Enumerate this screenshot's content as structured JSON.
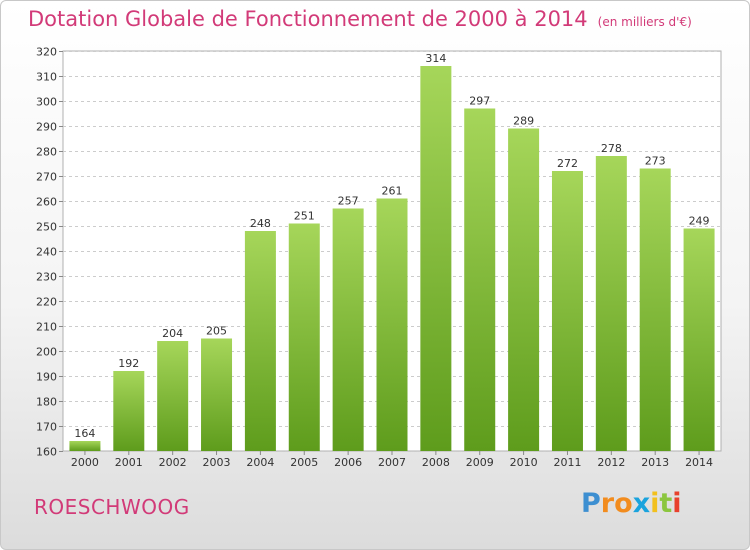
{
  "page": {
    "title": "Dotation Globale de Fonctionnement de 2000 à 2014",
    "unit": "(en milliers d'€)",
    "commune": "ROESCHWOOG",
    "logo": {
      "letters": [
        "P",
        "r",
        "o",
        "x",
        "i",
        "t",
        "i"
      ],
      "colors": [
        "#3d8fd1",
        "#f28c1e",
        "#f28c1e",
        "#1aa3dd",
        "#f2c01e",
        "#8cc63f",
        "#e8412c"
      ]
    }
  },
  "colors": {
    "title": "#d23a78",
    "bar_top": "#a6d65a",
    "bar_bottom": "#5e9c1c",
    "grid": "#cccccc"
  },
  "chart_data": {
    "type": "bar",
    "categories": [
      "2000",
      "2001",
      "2002",
      "2003",
      "2004",
      "2005",
      "2006",
      "2007",
      "2008",
      "2009",
      "2010",
      "2011",
      "2012",
      "2013",
      "2014"
    ],
    "values": [
      164,
      192,
      204,
      205,
      248,
      251,
      257,
      261,
      314,
      297,
      289,
      272,
      278,
      273,
      249
    ],
    "title": "Dotation Globale de Fonctionnement de 2000 à 2014",
    "ylim": [
      160,
      320
    ],
    "yticks": [
      160,
      170,
      180,
      190,
      200,
      210,
      220,
      230,
      240,
      250,
      260,
      270,
      280,
      290,
      300,
      310,
      320
    ],
    "grid": true
  }
}
